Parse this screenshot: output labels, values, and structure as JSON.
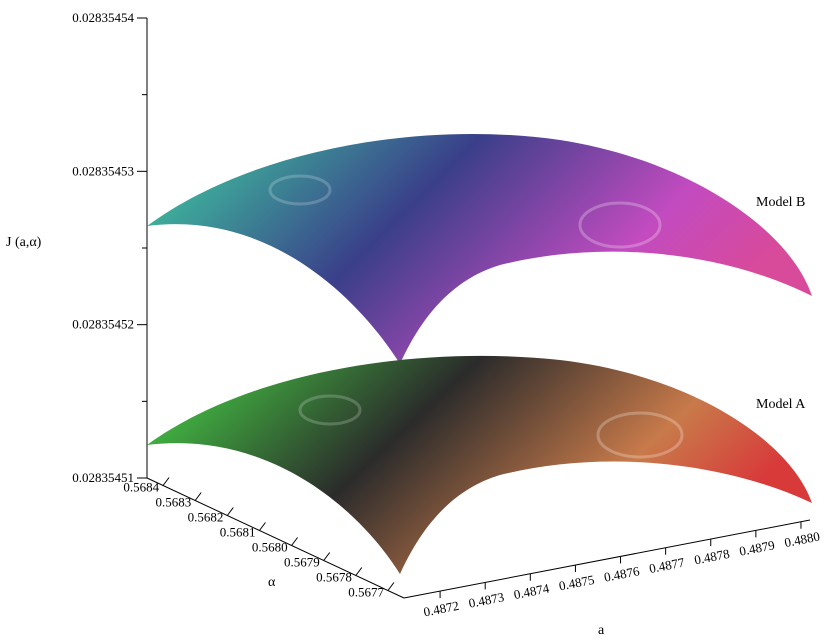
{
  "chart_data": {
    "type": "surface",
    "title": "",
    "zlabel": "J (a,α)",
    "xlabel": "a",
    "ylabel": "α",
    "z_ticks": [
      "0.02835451",
      "0.02835452",
      "0.02835453",
      "0.02835454"
    ],
    "z_tick_values": [
      0.02835451,
      0.02835452,
      0.02835453,
      0.02835454
    ],
    "zlim": [
      0.02835451,
      0.02835454
    ],
    "a_ticks": [
      "0.4872",
      "0.4873",
      "0.4874",
      "0.4875",
      "0.4876",
      "0.4877",
      "0.4878",
      "0.4879",
      "0.4880"
    ],
    "a_tick_values": [
      0.4872,
      0.4873,
      0.4874,
      0.4875,
      0.4876,
      0.4877,
      0.4878,
      0.4879,
      0.488
    ],
    "alpha_ticks": [
      "0.5684",
      "0.5683",
      "0.5682",
      "0.5681",
      "0.5680",
      "0.5679",
      "0.5678",
      "0.5677"
    ],
    "alpha_tick_values": [
      0.5684,
      0.5683,
      0.5682,
      0.5681,
      0.568,
      0.5679,
      0.5678,
      0.5677
    ],
    "series": [
      {
        "name": "Model B",
        "colormap": [
          "#3fd6a0",
          "#3a3f8a",
          "#c24bc0",
          "#d84a9a"
        ],
        "z_corners": {
          "far_left": 0.028354526,
          "near_left": 0.028354519,
          "near_right": 0.028354521,
          "far_right": 0.028354524
        },
        "z_peak": 0.028354532
      },
      {
        "name": "Model A",
        "colormap": [
          "#48e048",
          "#2b2b2b",
          "#c87a4a",
          "#d83a3a"
        ],
        "z_corners": {
          "far_left": 0.028354512,
          "near_left": 0.028354507,
          "near_right": 0.02835451,
          "far_right": 0.028354513
        },
        "z_peak": 0.028354518
      }
    ],
    "grid": false,
    "legend": "inline labels right"
  }
}
